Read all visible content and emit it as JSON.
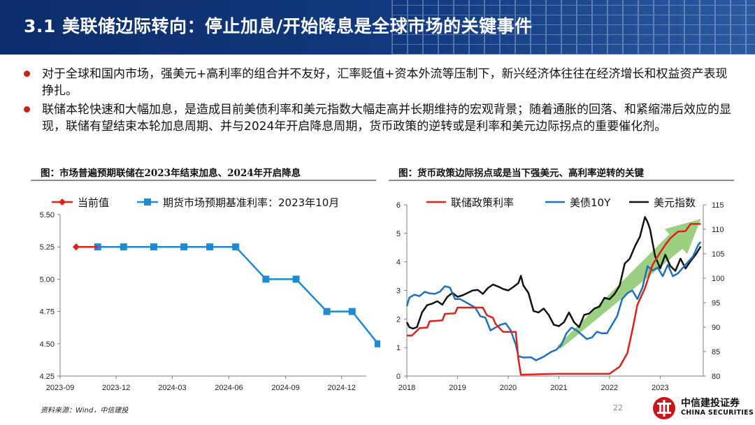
{
  "header": {
    "title": "3.1 美联储边际转向：停止加息/开始降息是全球市场的关键事件",
    "accent_color": "#0c2d6b"
  },
  "bullets": [
    "对于全球和国内市场，强美元+高利率的组合并不友好，汇率贬值+资本外流等压制下，新兴经济体往往在经济增长和权益资产表现挣扎。",
    "联储本轮快速和大幅加息，是造成目前美债利率和美元指数大幅走高并长期维持的宏观背景；随着通胀的回落、和紧缩滞后效应的显现，联储有望结束本轮加息周期、并与2024年开启降息周期，货币政策的逆转或是利率和美元边际拐点的重要催化剂。"
  ],
  "figure_captions": [
    "图：市场普遍预期联储在2023年结束加息、2024年开启降息",
    "图：货币政策边际拐点或是当下强美元、高利率逆转的关键"
  ],
  "footer": {
    "source": "资料来源：Wind，中信建投",
    "page": "22",
    "logo_cn": "中信建投证券",
    "logo_en": "CHINA SECURITIES"
  },
  "chart_data": [
    {
      "type": "line",
      "legend_position": "top",
      "x_ticks": [
        "2023-09",
        "2023-12",
        "2024-03",
        "2024-06",
        "2024-09",
        "2024-12"
      ],
      "ylim": [
        4.25,
        5.5
      ],
      "y_ticks": [
        "4.25",
        "4.50",
        "4.75",
        "5.00",
        "5.25",
        "5.50"
      ],
      "grid": false,
      "series": [
        {
          "name": "当前值",
          "color": "#e0201b",
          "marker": "diamond",
          "points": [
            [
              "2023-09-27",
              5.25
            ],
            [
              "2023-11-01",
              5.25
            ]
          ]
        },
        {
          "name": "期货市场预期基准利率：2023年10月",
          "color": "#1f8ad2",
          "marker": "square",
          "points": [
            [
              "2023-11-01",
              5.25
            ],
            [
              "2023-12-13",
              5.25
            ],
            [
              "2024-01-31",
              5.25
            ],
            [
              "2024-03-20",
              5.25
            ],
            [
              "2024-05-01",
              5.25
            ],
            [
              "2024-06-12",
              5.25
            ],
            [
              "2024-07-31",
              5.0
            ],
            [
              "2024-09-18",
              5.0
            ],
            [
              "2024-11-07",
              4.75
            ],
            [
              "2024-12-18",
              4.75
            ],
            [
              "2025-01-29",
              4.5
            ]
          ]
        }
      ]
    },
    {
      "type": "line",
      "legend_position": "top",
      "x_ticks": [
        "2018",
        "2019",
        "2020",
        "2021",
        "2022",
        "2023"
      ],
      "y_left_ticks": [
        "0",
        "1",
        "2",
        "3",
        "4",
        "5",
        "6"
      ],
      "y_right_ticks": [
        "80",
        "85",
        "90",
        "95",
        "100",
        "105",
        "110",
        "115"
      ],
      "ylim_left": [
        0,
        6
      ],
      "ylim_right": [
        80,
        115
      ],
      "grid": false,
      "trend_arrow": {
        "color": "#7cbf5a",
        "from": [
          2021.0,
          1.0
        ],
        "to": [
          2023.8,
          5.5
        ]
      },
      "series": [
        {
          "name": "联储政策利率",
          "color": "#e0201b",
          "axis": "left",
          "points": [
            [
              2018.0,
              1.42
            ],
            [
              2018.1,
              1.42
            ],
            [
              2018.25,
              1.68
            ],
            [
              2018.4,
              1.7
            ],
            [
              2018.45,
              1.92
            ],
            [
              2018.7,
              1.95
            ],
            [
              2018.75,
              2.18
            ],
            [
              2018.95,
              2.2
            ],
            [
              2019.0,
              2.4
            ],
            [
              2019.5,
              2.4
            ],
            [
              2019.58,
              2.13
            ],
            [
              2019.7,
              2.04
            ],
            [
              2019.75,
              1.83
            ],
            [
              2019.9,
              1.55
            ],
            [
              2020.15,
              1.55
            ],
            [
              2020.2,
              0.6
            ],
            [
              2020.25,
              0.05
            ],
            [
              2021.0,
              0.08
            ],
            [
              2022.0,
              0.08
            ],
            [
              2022.2,
              0.33
            ],
            [
              2022.35,
              0.8
            ],
            [
              2022.45,
              1.6
            ],
            [
              2022.55,
              2.5
            ],
            [
              2022.7,
              3.08
            ],
            [
              2022.85,
              3.9
            ],
            [
              2023.0,
              4.33
            ],
            [
              2023.1,
              4.6
            ],
            [
              2023.2,
              4.83
            ],
            [
              2023.35,
              5.06
            ],
            [
              2023.5,
              5.08
            ],
            [
              2023.6,
              5.33
            ],
            [
              2023.8,
              5.33
            ]
          ]
        },
        {
          "name": "美债10Y",
          "color": "#1f6fbf",
          "axis": "left",
          "points": [
            [
              2018.0,
              2.45
            ],
            [
              2018.05,
              2.75
            ],
            [
              2018.15,
              2.85
            ],
            [
              2018.25,
              2.8
            ],
            [
              2018.35,
              2.95
            ],
            [
              2018.45,
              2.9
            ],
            [
              2018.55,
              2.88
            ],
            [
              2018.65,
              2.95
            ],
            [
              2018.75,
              3.15
            ],
            [
              2018.85,
              3.1
            ],
            [
              2018.95,
              2.7
            ],
            [
              2019.05,
              2.7
            ],
            [
              2019.2,
              2.55
            ],
            [
              2019.35,
              2.4
            ],
            [
              2019.45,
              2.1
            ],
            [
              2019.55,
              2.05
            ],
            [
              2019.65,
              1.6
            ],
            [
              2019.75,
              1.7
            ],
            [
              2019.85,
              1.8
            ],
            [
              2019.95,
              1.85
            ],
            [
              2020.05,
              1.6
            ],
            [
              2020.15,
              1.1
            ],
            [
              2020.2,
              0.7
            ],
            [
              2020.3,
              0.65
            ],
            [
              2020.45,
              0.66
            ],
            [
              2020.55,
              0.55
            ],
            [
              2020.7,
              0.68
            ],
            [
              2020.85,
              0.85
            ],
            [
              2020.95,
              0.92
            ],
            [
              2021.05,
              1.1
            ],
            [
              2021.15,
              1.5
            ],
            [
              2021.25,
              1.7
            ],
            [
              2021.35,
              1.6
            ],
            [
              2021.45,
              1.45
            ],
            [
              2021.55,
              1.3
            ],
            [
              2021.65,
              1.35
            ],
            [
              2021.75,
              1.55
            ],
            [
              2021.85,
              1.5
            ],
            [
              2021.95,
              1.5
            ],
            [
              2022.05,
              1.8
            ],
            [
              2022.15,
              2.1
            ],
            [
              2022.25,
              2.7
            ],
            [
              2022.35,
              2.9
            ],
            [
              2022.45,
              3.0
            ],
            [
              2022.55,
              2.7
            ],
            [
              2022.65,
              3.1
            ],
            [
              2022.75,
              3.85
            ],
            [
              2022.85,
              3.7
            ],
            [
              2022.95,
              3.8
            ],
            [
              2023.05,
              3.5
            ],
            [
              2023.15,
              3.9
            ],
            [
              2023.25,
              3.5
            ],
            [
              2023.35,
              3.6
            ],
            [
              2023.45,
              3.8
            ],
            [
              2023.55,
              4.0
            ],
            [
              2023.65,
              4.2
            ],
            [
              2023.75,
              4.6
            ],
            [
              2023.8,
              4.7
            ]
          ]
        },
        {
          "name": "美元指数",
          "color": "#111111",
          "axis": "right",
          "points": [
            [
              2018.0,
              91
            ],
            [
              2018.05,
              90
            ],
            [
              2018.12,
              89.7
            ],
            [
              2018.2,
              90
            ],
            [
              2018.3,
              93
            ],
            [
              2018.4,
              94.5
            ],
            [
              2018.5,
              94.8
            ],
            [
              2018.6,
              95.3
            ],
            [
              2018.7,
              94.6
            ],
            [
              2018.8,
              96.2
            ],
            [
              2018.9,
              97
            ],
            [
              2019.0,
              96.2
            ],
            [
              2019.1,
              96.5
            ],
            [
              2019.2,
              97
            ],
            [
              2019.3,
              97.5
            ],
            [
              2019.4,
              97.6
            ],
            [
              2019.5,
              96.8
            ],
            [
              2019.6,
              98
            ],
            [
              2019.7,
              98.7
            ],
            [
              2019.8,
              98.3
            ],
            [
              2019.9,
              97.8
            ],
            [
              2020.0,
              97.5
            ],
            [
              2020.1,
              98.2
            ],
            [
              2020.2,
              99
            ],
            [
              2020.25,
              100.5
            ],
            [
              2020.3,
              98.5
            ],
            [
              2020.4,
              97
            ],
            [
              2020.5,
              93.3
            ],
            [
              2020.6,
              93
            ],
            [
              2020.7,
              93.8
            ],
            [
              2020.8,
              92.5
            ],
            [
              2020.9,
              90.5
            ],
            [
              2021.0,
              90.2
            ],
            [
              2021.1,
              91
            ],
            [
              2021.2,
              93
            ],
            [
              2021.3,
              91
            ],
            [
              2021.4,
              90
            ],
            [
              2021.5,
              92.5
            ],
            [
              2021.6,
              92.8
            ],
            [
              2021.7,
              93.8
            ],
            [
              2021.8,
              94.2
            ],
            [
              2021.9,
              96
            ],
            [
              2022.0,
              95.7
            ],
            [
              2022.1,
              96.8
            ],
            [
              2022.2,
              98.5
            ],
            [
              2022.3,
              103
            ],
            [
              2022.4,
              104
            ],
            [
              2022.5,
              106.5
            ],
            [
              2022.6,
              108.5
            ],
            [
              2022.7,
              112.5
            ],
            [
              2022.75,
              111.5
            ],
            [
              2022.8,
              110
            ],
            [
              2022.9,
              104.5
            ],
            [
              2023.0,
              102
            ],
            [
              2023.1,
              104.8
            ],
            [
              2023.2,
              102.5
            ],
            [
              2023.3,
              101.5
            ],
            [
              2023.4,
              104
            ],
            [
              2023.5,
              102
            ],
            [
              2023.6,
              103.5
            ],
            [
              2023.7,
              104.8
            ],
            [
              2023.8,
              106.5
            ]
          ]
        }
      ]
    }
  ]
}
